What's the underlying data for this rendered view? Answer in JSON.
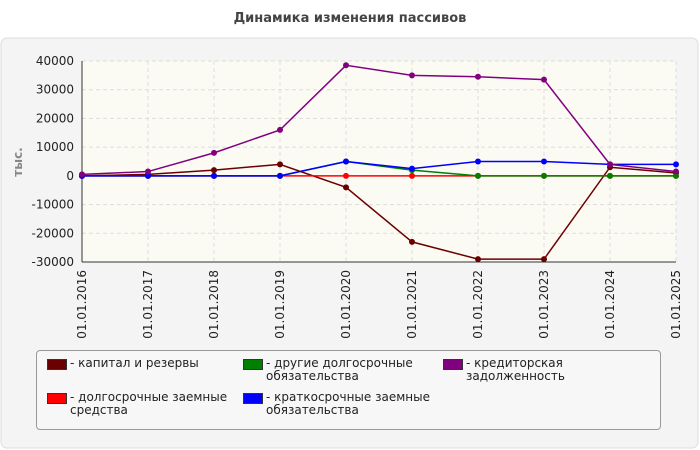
{
  "chart_data": {
    "type": "line",
    "title": "Динамика изменения пассивов",
    "y_label": "тыс.",
    "categories": [
      "01.01.2016",
      "01.01.2017",
      "01.01.2018",
      "01.01.2019",
      "01.01.2020",
      "01.01.2021",
      "01.01.2022",
      "01.01.2023",
      "01.01.2024",
      "01.01.2025"
    ],
    "series": [
      {
        "name": "- капитал и резервы",
        "color": "#6b0000",
        "values": [
          0,
          500,
          2000,
          4000,
          -4000,
          -23000,
          -29000,
          -29000,
          3000,
          1000
        ]
      },
      {
        "name": "- долгосрочные заемные средства",
        "color": "#ff0000",
        "values": [
          0,
          0,
          0,
          0,
          0,
          0,
          0,
          0,
          0,
          0
        ]
      },
      {
        "name": "- другие долгосрочные обязательства",
        "color": "#008000",
        "values": [
          0,
          0,
          0,
          0,
          5000,
          2000,
          0,
          0,
          0,
          0
        ]
      },
      {
        "name": "- краткосрочные заемные обязательства",
        "color": "#0000ff",
        "values": [
          0,
          0,
          0,
          0,
          5000,
          2500,
          5000,
          5000,
          4000,
          4000
        ]
      },
      {
        "name": "- кредиторская задолженность",
        "color": "#800080",
        "values": [
          500,
          1500,
          8000,
          16000,
          38500,
          35000,
          34500,
          33500,
          4000,
          1500
        ]
      }
    ],
    "ylim": [
      -30000,
      40000
    ],
    "yticks": [
      -30000,
      -20000,
      -10000,
      0,
      10000,
      20000,
      30000,
      40000
    ],
    "grid": true
  }
}
